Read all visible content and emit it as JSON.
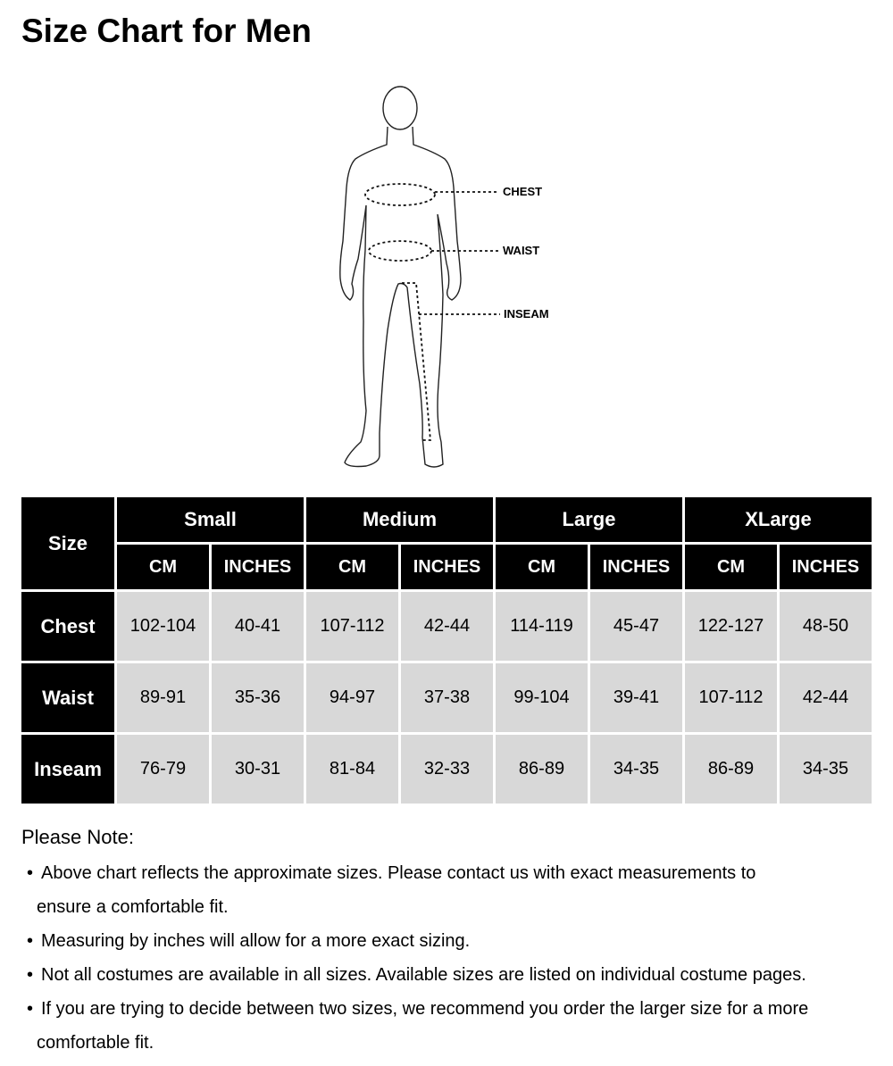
{
  "title": "Size Chart for Men",
  "figure": {
    "labels": {
      "chest": "CHEST",
      "waist": "WAIST",
      "inseam": "INSEAM"
    }
  },
  "table": {
    "corner": "Size",
    "sizes": [
      "Small",
      "Medium",
      "Large",
      "XLarge"
    ],
    "units": [
      "CM",
      "INCHES"
    ],
    "rows": [
      {
        "label": "Chest",
        "values": [
          "102-104",
          "40-41",
          "107-112",
          "42-44",
          "114-119",
          "45-47",
          "122-127",
          "48-50"
        ]
      },
      {
        "label": "Waist",
        "values": [
          "89-91",
          "35-36",
          "94-97",
          "37-38",
          "99-104",
          "39-41",
          "107-112",
          "42-44"
        ]
      },
      {
        "label": "Inseam",
        "values": [
          "76-79",
          "30-31",
          "81-84",
          "32-33",
          "86-89",
          "34-35",
          "86-89",
          "34-35"
        ]
      }
    ]
  },
  "notes": {
    "title": "Please Note:",
    "bullet": "•",
    "items": [
      {
        "lines": [
          "Above chart reflects the approximate sizes. Please contact us with exact measurements to",
          "ensure a comfortable fit."
        ]
      },
      {
        "lines": [
          "Measuring by inches will allow for a more exact sizing."
        ]
      },
      {
        "lines": [
          "Not all costumes are available in all sizes. Available sizes are listed on individual costume pages."
        ]
      },
      {
        "lines": [
          "If you are trying to decide between two sizes, we recommend you order the larger size for a more",
          "comfortable fit."
        ]
      }
    ]
  },
  "colors": {
    "header_bg": "#000000",
    "header_text": "#ffffff",
    "cell_bg": "#d8d8d8"
  }
}
